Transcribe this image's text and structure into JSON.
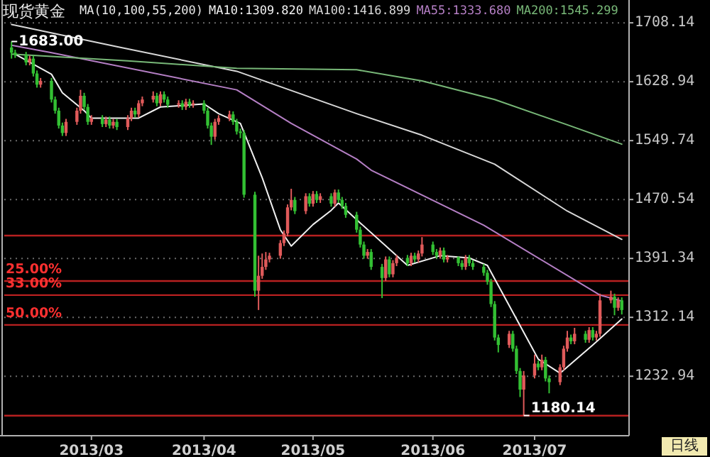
{
  "chart_data": {
    "type": "candlestick",
    "title": "现货黄金",
    "subtitle": "MA(10,100,55,200)",
    "x": [
      "2013-02-07",
      "2013-02-08",
      "2013-02-11",
      "2013-02-12",
      "2013-02-13",
      "2013-02-14",
      "2013-02-15",
      "2013-02-18",
      "2013-02-19",
      "2013-02-20",
      "2013-02-21",
      "2013-02-22",
      "2013-02-25",
      "2013-02-26",
      "2013-02-27",
      "2013-02-28",
      "2013-03-01",
      "2013-03-04",
      "2013-03-05",
      "2013-03-06",
      "2013-03-07",
      "2013-03-08",
      "2013-03-11",
      "2013-03-12",
      "2013-03-13",
      "2013-03-14",
      "2013-03-15",
      "2013-03-18",
      "2013-03-19",
      "2013-03-20",
      "2013-03-21",
      "2013-03-22",
      "2013-03-25",
      "2013-03-26",
      "2013-03-27",
      "2013-03-28",
      "2013-03-29",
      "2013-04-01",
      "2013-04-02",
      "2013-04-03",
      "2013-04-04",
      "2013-04-05",
      "2013-04-08",
      "2013-04-09",
      "2013-04-10",
      "2013-04-11",
      "2013-04-12",
      "2013-04-15",
      "2013-04-16",
      "2013-04-17",
      "2013-04-18",
      "2013-04-19",
      "2013-04-22",
      "2013-04-23",
      "2013-04-24",
      "2013-04-25",
      "2013-04-26",
      "2013-04-29",
      "2013-04-30",
      "2013-05-01",
      "2013-05-02",
      "2013-05-03",
      "2013-05-06",
      "2013-05-07",
      "2013-05-08",
      "2013-05-09",
      "2013-05-10",
      "2013-05-13",
      "2013-05-14",
      "2013-05-15",
      "2013-05-16",
      "2013-05-17",
      "2013-05-20",
      "2013-05-21",
      "2013-05-22",
      "2013-05-23",
      "2013-05-24",
      "2013-05-27",
      "2013-05-28",
      "2013-05-29",
      "2013-05-30",
      "2013-05-31",
      "2013-06-03",
      "2013-06-04",
      "2013-06-05",
      "2013-06-06",
      "2013-06-07",
      "2013-06-10",
      "2013-06-11",
      "2013-06-12",
      "2013-06-13",
      "2013-06-14",
      "2013-06-17",
      "2013-06-18",
      "2013-06-19",
      "2013-06-20",
      "2013-06-21",
      "2013-06-24",
      "2013-06-25",
      "2013-06-26",
      "2013-06-27",
      "2013-06-28",
      "2013-07-01",
      "2013-07-02",
      "2013-07-03",
      "2013-07-04",
      "2013-07-05",
      "2013-07-08",
      "2013-07-09",
      "2013-07-10",
      "2013-07-11",
      "2013-07-12",
      "2013-07-15",
      "2013-07-16",
      "2013-07-17",
      "2013-07-18",
      "2013-07-19",
      "2013-07-22",
      "2013-07-23",
      "2013-07-24",
      "2013-07-25"
    ],
    "xlim": [
      "2013-02-05",
      "2013-07-27"
    ],
    "xticks": [
      {
        "value": "2013-03-01",
        "label": "2013/03"
      },
      {
        "value": "2013-04-01",
        "label": "2013/04"
      },
      {
        "value": "2013-05-01",
        "label": "2013/05"
      },
      {
        "value": "2013-06-03",
        "label": "2013/06"
      },
      {
        "value": "2013-07-01",
        "label": "2013/07"
      }
    ],
    "ylim": [
      1153,
      1735
    ],
    "yticks": [
      1232.94,
      1312.14,
      1391.34,
      1470.54,
      1549.74,
      1628.94,
      1708.14
    ],
    "grid": "y",
    "legend": "top",
    "series": [
      {
        "ohlc": [
          [
            1675,
            1683,
            1660,
            1668
          ],
          [
            1668,
            1672,
            1661,
            1665
          ],
          [
            1665,
            1669,
            1651,
            1655
          ],
          [
            1655,
            1664,
            1651,
            1660
          ],
          [
            1660,
            1664,
            1636,
            1640
          ],
          [
            1640,
            1644,
            1621,
            1625
          ],
          [
            1625,
            1634,
            1621,
            1630
          ],
          [
            1630,
            1634,
            1601,
            1605
          ],
          [
            1605,
            1609,
            1586,
            1590
          ],
          [
            1590,
            1594,
            1566,
            1570
          ],
          [
            1570,
            1574,
            1556,
            1560
          ],
          [
            1560,
            1579,
            1556,
            1575
          ],
          [
            1575,
            1594,
            1571,
            1590
          ],
          [
            1590,
            1618,
            1586,
            1610
          ],
          [
            1610,
            1614,
            1591,
            1595
          ],
          [
            1595,
            1599,
            1571,
            1575
          ],
          [
            1575,
            1584,
            1571,
            1580
          ],
          [
            1580,
            1584,
            1568,
            1572
          ],
          [
            1572,
            1582,
            1568,
            1578
          ],
          [
            1578,
            1582,
            1566,
            1570
          ],
          [
            1570,
            1579,
            1566,
            1575
          ],
          [
            1575,
            1579,
            1564,
            1568
          ],
          [
            1568,
            1584,
            1564,
            1580
          ],
          [
            1580,
            1594,
            1576,
            1590
          ],
          [
            1590,
            1594,
            1581,
            1585
          ],
          [
            1585,
            1604,
            1581,
            1600
          ],
          [
            1600,
            1609,
            1596,
            1605
          ],
          [
            1605,
            1616,
            1601,
            1610
          ],
          [
            1610,
            1614,
            1596,
            1600
          ],
          [
            1600,
            1616,
            1596,
            1612
          ],
          [
            1612,
            1616,
            1601,
            1605
          ],
          [
            1605,
            1609,
            1594,
            1598
          ],
          [
            1598,
            1604,
            1594,
            1600
          ],
          [
            1600,
            1604,
            1591,
            1595
          ],
          [
            1595,
            1606,
            1591,
            1602
          ],
          [
            1602,
            1606,
            1594,
            1598
          ],
          [
            1598,
            1604,
            1594,
            1600
          ],
          [
            1600,
            1604,
            1586,
            1590
          ],
          [
            1590,
            1594,
            1566,
            1570
          ],
          [
            1570,
            1574,
            1544,
            1555
          ],
          [
            1555,
            1579,
            1551,
            1575
          ],
          [
            1575,
            1584,
            1571,
            1580
          ],
          [
            1580,
            1590,
            1576,
            1585
          ],
          [
            1585,
            1589,
            1571,
            1575
          ],
          [
            1575,
            1579,
            1558,
            1562
          ],
          [
            1562,
            1566,
            1553,
            1560
          ],
          [
            1560,
            1564,
            1473,
            1477
          ],
          [
            1477,
            1481,
            1340,
            1348
          ],
          [
            1348,
            1395,
            1322,
            1368
          ],
          [
            1368,
            1398,
            1364,
            1380
          ],
          [
            1380,
            1400,
            1376,
            1390
          ],
          [
            1390,
            1399,
            1386,
            1395
          ],
          [
            1395,
            1416,
            1391,
            1412
          ],
          [
            1412,
            1429,
            1408,
            1425
          ],
          [
            1425,
            1464,
            1421,
            1460
          ],
          [
            1460,
            1485,
            1456,
            1470
          ],
          [
            1470,
            1474,
            1451,
            1455
          ],
          [
            1455,
            1479,
            1451,
            1475
          ],
          [
            1475,
            1479,
            1461,
            1465
          ],
          [
            1465,
            1482,
            1461,
            1478
          ],
          [
            1478,
            1482,
            1466,
            1470
          ],
          [
            1470,
            1479,
            1466,
            1475
          ],
          [
            1475,
            1479,
            1461,
            1465
          ],
          [
            1465,
            1484,
            1461,
            1480
          ],
          [
            1480,
            1484,
            1466,
            1470
          ],
          [
            1470,
            1474,
            1458,
            1462
          ],
          [
            1462,
            1466,
            1446,
            1450
          ],
          [
            1450,
            1454,
            1426,
            1430
          ],
          [
            1430,
            1434,
            1406,
            1410
          ],
          [
            1410,
            1414,
            1391,
            1395
          ],
          [
            1395,
            1404,
            1391,
            1400
          ],
          [
            1400,
            1404,
            1376,
            1380
          ],
          [
            1380,
            1384,
            1338,
            1365
          ],
          [
            1365,
            1394,
            1361,
            1390
          ],
          [
            1390,
            1394,
            1366,
            1370
          ],
          [
            1370,
            1389,
            1366,
            1385
          ],
          [
            1385,
            1396,
            1381,
            1392
          ],
          [
            1392,
            1396,
            1381,
            1385
          ],
          [
            1385,
            1399,
            1381,
            1395
          ],
          [
            1395,
            1399,
            1386,
            1390
          ],
          [
            1390,
            1402,
            1386,
            1398
          ],
          [
            1398,
            1420,
            1394,
            1410
          ],
          [
            1410,
            1414,
            1396,
            1400
          ],
          [
            1400,
            1404,
            1391,
            1395
          ],
          [
            1395,
            1406,
            1391,
            1402
          ],
          [
            1402,
            1406,
            1386,
            1390
          ],
          [
            1390,
            1396,
            1386,
            1393
          ],
          [
            1393,
            1394,
            1381,
            1385
          ],
          [
            1385,
            1389,
            1376,
            1380
          ],
          [
            1380,
            1396,
            1376,
            1392
          ],
          [
            1392,
            1396,
            1381,
            1385
          ],
          [
            1385,
            1389,
            1376,
            1380
          ],
          [
            1380,
            1384,
            1368,
            1372
          ],
          [
            1372,
            1376,
            1356,
            1360
          ],
          [
            1360,
            1364,
            1326,
            1330
          ],
          [
            1330,
            1334,
            1281,
            1285
          ],
          [
            1285,
            1289,
            1265,
            1275
          ],
          [
            1275,
            1294,
            1271,
            1290
          ],
          [
            1290,
            1294,
            1266,
            1270
          ],
          [
            1270,
            1274,
            1236,
            1240
          ],
          [
            1240,
            1244,
            1205,
            1215
          ],
          [
            1215,
            1240,
            1180.14,
            1234
          ],
          [
            1234,
            1262,
            1230,
            1250
          ],
          [
            1250,
            1254,
            1241,
            1245
          ],
          [
            1245,
            1262,
            1241,
            1255
          ],
          [
            1255,
            1259,
            1226,
            1230
          ],
          [
            1230,
            1234,
            1210,
            1225
          ],
          [
            1225,
            1249,
            1221,
            1245
          ],
          [
            1245,
            1274,
            1241,
            1270
          ],
          [
            1270,
            1294,
            1266,
            1285
          ],
          [
            1285,
            1289,
            1276,
            1280
          ],
          [
            1280,
            1298,
            1276,
            1290
          ],
          [
            1290,
            1294,
            1278,
            1282
          ],
          [
            1282,
            1299,
            1278,
            1295
          ],
          [
            1295,
            1299,
            1281,
            1285
          ],
          [
            1285,
            1294,
            1281,
            1290
          ],
          [
            1290,
            1344,
            1286,
            1335
          ],
          [
            1335,
            1348,
            1331,
            1340
          ],
          [
            1340,
            1344,
            1315,
            1325
          ],
          [
            1325,
            1339,
            1321,
            1335
          ],
          [
            1335,
            1339,
            1316,
            1322
          ]
        ],
        "colors": [
          "#33c033",
          "#33c033",
          "#33c033",
          "#e05a5a",
          "#33c033",
          "#33c033",
          "#e05a5a",
          "#33c033",
          "#33c033",
          "#33c033",
          "#33c033",
          "#e05a5a",
          "#e05a5a",
          "#e05a5a",
          "#33c033",
          "#33c033",
          "#e05a5a",
          "#33c033",
          "#e05a5a",
          "#33c033",
          "#e05a5a",
          "#33c033",
          "#e05a5a",
          "#e05a5a",
          "#33c033",
          "#e05a5a",
          "#e05a5a",
          "#e05a5a",
          "#33c033",
          "#e05a5a",
          "#33c033",
          "#33c033",
          "#e05a5a",
          "#33c033",
          "#e05a5a",
          "#33c033",
          "#e05a5a",
          "#33c033",
          "#33c033",
          "#33c033",
          "#e05a5a",
          "#e05a5a",
          "#e05a5a",
          "#33c033",
          "#33c033",
          "#33c033",
          "#33c033",
          "#33c033",
          "#e05a5a",
          "#e05a5a",
          "#e05a5a",
          "#e05a5a",
          "#e05a5a",
          "#e05a5a",
          "#e05a5a",
          "#e05a5a",
          "#33c033",
          "#e05a5a",
          "#33c033",
          "#e05a5a",
          "#33c033",
          "#e05a5a",
          "#33c033",
          "#e05a5a",
          "#33c033",
          "#33c033",
          "#33c033",
          "#33c033",
          "#33c033",
          "#33c033",
          "#e05a5a",
          "#33c033",
          "#33c033",
          "#e05a5a",
          "#33c033",
          "#e05a5a",
          "#e05a5a",
          "#33c033",
          "#e05a5a",
          "#33c033",
          "#e05a5a",
          "#e05a5a",
          "#33c033",
          "#33c033",
          "#e05a5a",
          "#33c033",
          "#e05a5a",
          "#33c033",
          "#33c033",
          "#e05a5a",
          "#33c033",
          "#33c033",
          "#33c033",
          "#33c033",
          "#33c033",
          "#33c033",
          "#33c033",
          "#e05a5a",
          "#33c033",
          "#33c033",
          "#33c033",
          "#e05a5a",
          "#e05a5a",
          "#33c033",
          "#e05a5a",
          "#33c033",
          "#33c033",
          "#e05a5a",
          "#e05a5a",
          "#e05a5a",
          "#33c033",
          "#e05a5a",
          "#33c033",
          "#e05a5a",
          "#33c033",
          "#e05a5a",
          "#e05a5a",
          "#e05a5a",
          "#33c033",
          "#e05a5a",
          "#33c033"
        ]
      },
      {
        "type": "line",
        "name": "MA10:1309.820",
        "color": "#f0f0f0",
        "x": [
          "2013-02-08",
          "2013-02-18",
          "2013-02-21",
          "2013-02-27",
          "2013-03-01",
          "2013-03-14",
          "2013-03-20",
          "2013-04-01",
          "2013-04-05",
          "2013-04-11",
          "2013-04-17",
          "2013-04-22",
          "2013-04-25",
          "2013-05-01",
          "2013-05-06",
          "2013-05-08",
          "2013-05-14",
          "2013-05-27",
          "2013-06-05",
          "2013-06-13",
          "2013-06-18",
          "2013-06-25",
          "2013-07-02",
          "2013-07-08",
          "2013-07-17",
          "2013-07-25"
        ],
        "values": [
          1666,
          1639,
          1614,
          1590,
          1580,
          1580,
          1595,
          1599,
          1586,
          1573,
          1500,
          1430,
          1408,
          1437,
          1456,
          1466,
          1439,
          1382,
          1395,
          1392,
          1382,
          1319,
          1256,
          1237,
          1275,
          1310
        ]
      },
      {
        "type": "line",
        "name": "MA100:1416.899",
        "color": "#d8d8d8",
        "x": [
          "2013-02-07",
          "2013-03-08",
          "2013-04-10",
          "2013-05-13",
          "2013-05-31",
          "2013-06-20",
          "2013-07-10",
          "2013-07-25"
        ],
        "values": [
          1706,
          1676,
          1643,
          1586,
          1557,
          1518,
          1455,
          1417
        ]
      },
      {
        "type": "line",
        "name": "MA55:1333.680",
        "color": "#b57fc5",
        "x": [
          "2013-02-07",
          "2013-02-18",
          "2013-04-10",
          "2013-04-25",
          "2013-05-13",
          "2013-05-17",
          "2013-06-17",
          "2013-07-19",
          "2013-07-25"
        ],
        "values": [
          1678,
          1668,
          1618,
          1573,
          1525,
          1510,
          1436,
          1342,
          1334
        ]
      },
      {
        "type": "line",
        "name": "MA200:1545.299",
        "color": "#78b878",
        "x": [
          "2013-02-07",
          "2013-03-11",
          "2013-04-10",
          "2013-05-13",
          "2013-05-31",
          "2013-06-20",
          "2013-07-10",
          "2013-07-25"
        ],
        "values": [
          1666,
          1657,
          1647,
          1645,
          1630,
          1605,
          1571,
          1545
        ]
      }
    ],
    "ref_lines": [
      {
        "axis": "y",
        "value": 1422,
        "label": null,
        "color": "#b82020"
      },
      {
        "axis": "y",
        "value": 1361,
        "label": null,
        "color": "#b82020"
      },
      {
        "axis": "y",
        "value": 1342,
        "label": null,
        "color": "#b82020"
      },
      {
        "axis": "y",
        "value": 1302,
        "label": null,
        "color": "#b82020"
      },
      {
        "axis": "y",
        "value": 1180,
        "label": null,
        "color": "#b82020"
      }
    ],
    "annotations": [
      {
        "text": "25.00%",
        "y": 1361
      },
      {
        "text": "33.00%",
        "y": 1342
      },
      {
        "text": "50.00%",
        "y": 1302
      },
      {
        "text": "1683.00",
        "x": "2013-02-07",
        "y": 1683
      },
      {
        "text": "1180.14",
        "x": "2013-06-28",
        "y": 1180.14
      },
      "日线"
    ]
  }
}
